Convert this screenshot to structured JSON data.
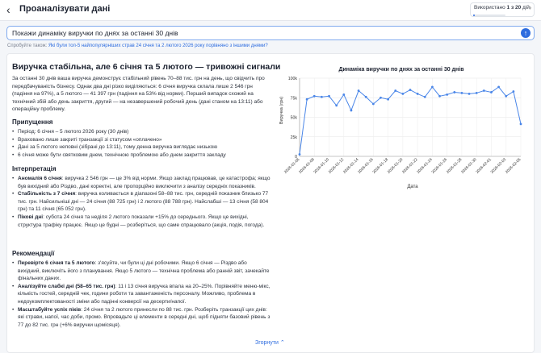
{
  "header": {
    "back_icon": "chevron-left-icon",
    "title": "Проаналізувати дані",
    "usage_prefix": "Використано",
    "usage_count": "1 з 20",
    "usage_unit": "дій",
    "usage_fraction": 0.05
  },
  "query": {
    "value": "Покажи динаміку виручки по днях за останні 30 днів",
    "send_icon": "arrow-up-icon"
  },
  "suggestions": {
    "prefix": "Спробуйте також:",
    "items": [
      "Які були топ-5 найпопулярніших страв 24 січня та 2 лютого 2026 року порівняно з іншими днями?"
    ]
  },
  "report": {
    "headline": "Виручка стабільна, але 6 січня та 5 лютого — тривожні сигнали",
    "intro": "За останні 30 днів ваша виручка демонструє стабільний рівень 70–88 тис. грн на день, що свідчить про передбачуваність бізнесу. Однак два дні різко виділяються: 6 січня виручка склала лише 2 546 грн (падіння на 97%), а 5 лютого — 41 397 грн (падіння на 53% від норми). Перший випадок схожий на технічний збій або день закриття, другий — на незавершений робочий день (дані станом на 13:11) або операційну проблему.",
    "assumptions_title": "Припущення",
    "assumptions": [
      "Період: 6 січня – 5 лютого 2026 року (30 днів)",
      "Враховано лише закриті транзакції зі статусом «оплачено»",
      "Дані за 5 лютого неповні (зібрані до 13:11), тому денна виручка виглядає низькою",
      "6 січня може бути святковим днем, технічною проблемою або днем закриття закладу"
    ],
    "interpretation_title": "Інтерпретація",
    "interpretation": [
      {
        "bold": "Аномалія 6 січня",
        "text": ": виручка 2 546 грн — це 3% від норми. Якщо заклад працював, це катастрофа; якщо був вихідний або Різдво, дані коректні, але пропорційно виключити з аналізу середніх показників."
      },
      {
        "bold": "Стабільність з 7 січня",
        "text": ": виручка коливається в діапазоні 58–88 тис. грн, середній показник близько 77 тис. грн. Найсильніші дні — 24 січня (88 725 грн) і 2 лютого (88 788 грн). Найслабші — 13 січня (58 804 грн) та 11 січня (65 052 грн)."
      },
      {
        "bold": "Пікові дні",
        "text": ": субота 24 січня та неділя 2 лютого показали +15% до середнього. Якщо це вихідні, структура трафіку працює. Якщо це будні — розберіться, що саме спрацювало (акція, подія, погода)."
      }
    ],
    "recommendations_title": "Рекомендації",
    "recommendations": [
      {
        "bold": "Перевірте 6 січня та 5 лютого",
        "text": ": з'ясуйте, чи були ці дні робочими. Якщо 6 січня — Різдво або вихідний, виключіть його з планування. Якщо 5 лютого — технічна проблема або ранній звіт, зачекайте фінальних даних."
      },
      {
        "bold": "Аналізуйте слабкі дні (58–65 тис. грн)",
        "text": ": 11 і 13 січня виручка впала на 20–25%. Порівняйте меню-мікс, кількість гостей, середній чек, години роботи та завантаженість персоналу. Можливо, проблема в недоукомплектованості зміни або падінні конверсії на десерти/напої."
      },
      {
        "bold": "Масштабуйте успіх піків",
        "text": ": 24 січня та 2 лютого принесли по 88 тис. грн. Розберіть транзакції цих днів: які страви, напої, час доби, промо. Впровадьте ці елементи в середні дні, щоб підняти базовий рівень з 77 до 82 тис. грн (+6% виручки щомісяця)."
      }
    ],
    "collapse_label": "Згорнути",
    "collapse_icon": "chevron-up-icon"
  },
  "chart_data": {
    "type": "line",
    "title": "Динаміка виручки по днях за останні 30 днів",
    "xlabel": "Дата",
    "ylabel": "Виручка (грн)",
    "ylim": [
      0,
      100000
    ],
    "y_ticks": [
      "0",
      "25k",
      "50k",
      "75k",
      "100k"
    ],
    "x_tick_labels": [
      "2026-01-06",
      "2026-01-08",
      "2026-01-10",
      "2026-01-12",
      "2026-01-14",
      "2026-01-16",
      "2026-01-18",
      "2026-01-20",
      "2026-01-22",
      "2026-01-24",
      "2026-01-26",
      "2026-01-28",
      "2026-01-30",
      "2026-02-01",
      "2026-02-03",
      "2026-02-05"
    ],
    "grid": true,
    "color": "#4a86e8",
    "x": [
      "2026-01-06",
      "2026-01-07",
      "2026-01-08",
      "2026-01-09",
      "2026-01-10",
      "2026-01-11",
      "2026-01-12",
      "2026-01-13",
      "2026-01-14",
      "2026-01-15",
      "2026-01-16",
      "2026-01-17",
      "2026-01-18",
      "2026-01-19",
      "2026-01-20",
      "2026-01-21",
      "2026-01-22",
      "2026-01-23",
      "2026-01-24",
      "2026-01-25",
      "2026-01-26",
      "2026-01-27",
      "2026-01-28",
      "2026-01-29",
      "2026-01-30",
      "2026-01-31",
      "2026-02-01",
      "2026-02-02",
      "2026-02-03",
      "2026-02-04",
      "2026-02-05"
    ],
    "values": [
      2546,
      73000,
      77000,
      76000,
      77000,
      65052,
      79000,
      58804,
      84000,
      76000,
      67000,
      75000,
      73000,
      84000,
      80000,
      85000,
      80000,
      76000,
      88725,
      77000,
      79000,
      82000,
      81000,
      80000,
      81000,
      84000,
      82000,
      88788,
      77000,
      83000,
      41397
    ]
  }
}
